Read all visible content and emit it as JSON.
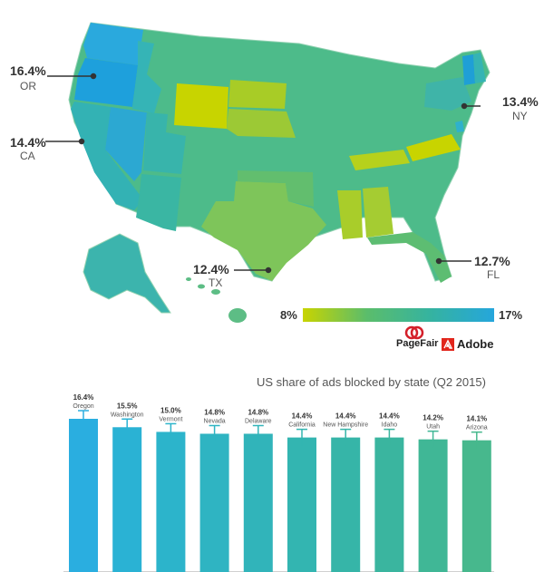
{
  "map": {
    "callouts": [
      {
        "state": "OR",
        "value": "16.4%"
      },
      {
        "state": "CA",
        "value": "14.4%"
      },
      {
        "state": "NY",
        "value": "13.4%"
      },
      {
        "state": "TX",
        "value": "12.4%"
      },
      {
        "state": "FL",
        "value": "12.7%"
      }
    ],
    "legend": {
      "min": "8%",
      "max": "17%",
      "colors": [
        "#c8d400",
        "#5bbd6b",
        "#35b3a0",
        "#25a6dc"
      ]
    }
  },
  "logos": {
    "pagefair": "PageFair",
    "adobe": "Adobe"
  },
  "chart_data": {
    "type": "bar",
    "title": "US share of ads blocked by state (Q2 2015)",
    "categories": [
      "Oregon",
      "Washington",
      "Vermont",
      "Nevada",
      "Delaware",
      "California",
      "New Hampshire",
      "Idaho",
      "Utah",
      "Arizona"
    ],
    "values": [
      16.4,
      15.5,
      15.0,
      14.8,
      14.8,
      14.4,
      14.4,
      14.4,
      14.2,
      14.1
    ],
    "value_labels": [
      "16.4%",
      "15.5%",
      "15.0%",
      "14.8%",
      "14.8%",
      "14.4%",
      "14.4%",
      "14.4%",
      "14.2%",
      "14.1%"
    ],
    "colors": [
      "#2aaee0",
      "#2ab2d4",
      "#2cb4cb",
      "#2fb4c2",
      "#31b4ba",
      "#33b5b1",
      "#36b5a8",
      "#3ab59f",
      "#40b796",
      "#47b88d"
    ],
    "grid": false,
    "error_bars": true
  }
}
